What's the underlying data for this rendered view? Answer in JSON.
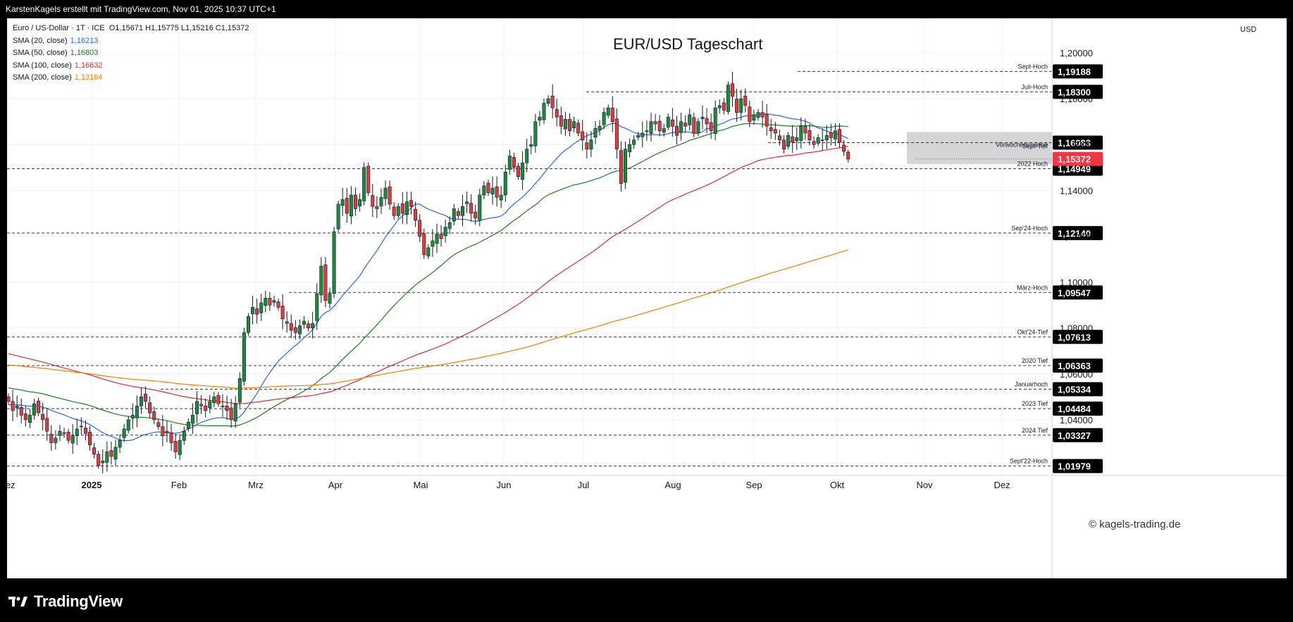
{
  "header": {
    "text": "KarstenKagels erstellt mit TradingView.com, Nov 01, 2025 10:37 UTC+1"
  },
  "legend": {
    "symbol": "Euro / US-Dollar · 1T · ICE",
    "ohlc": "O1,15671  H1,15775  L1,15216  C1,15372",
    "sma": [
      {
        "label": "SMA (20, close)",
        "value": "1,16213",
        "color": "#2962ff"
      },
      {
        "label": "SMA (50, close)",
        "value": "1,16803",
        "color": "#1b7d1b"
      },
      {
        "label": "SMA (100, close)",
        "value": "1,16632",
        "color": "#d32f2f"
      },
      {
        "label": "SMA (200, close)",
        "value": "1,13164",
        "color": "#f57c00"
      }
    ]
  },
  "title": "EUR/USD Tageschart",
  "currency": "USD",
  "watermark": "© kagels-trading.de",
  "footer": {
    "brand": "TradingView"
  },
  "chart_data": {
    "type": "candlestick",
    "title": "EUR/USD Tageschart",
    "y_axis_ticks": [
      "1,20000",
      "1,18000",
      "1,16000",
      "1,14000",
      "1,12000",
      "1,10000",
      "1,08000",
      "1,06000",
      "1,04000"
    ],
    "y_axis_tick_values": [
      1.2,
      1.18,
      1.16,
      1.14,
      1.12,
      1.1,
      1.08,
      1.06,
      1.04
    ],
    "x_axis_ticks": [
      "Dez",
      "2025",
      "Feb",
      "Mrz",
      "Apr",
      "Mai",
      "Jun",
      "Jul",
      "Aug",
      "Sep",
      "Okt",
      "Nov",
      "Dez"
    ],
    "levels": [
      {
        "name": "Sept-Hoch",
        "value": 1.19188,
        "label": "1,19188"
      },
      {
        "name": "Juli-Hoch",
        "value": 1.183,
        "label": "1,18300"
      },
      {
        "name": "Vorwochenspanne",
        "value": 1.16083,
        "label": "1,16083"
      },
      {
        "name": "Sept-Tief",
        "value": 1.16083,
        "label": ""
      },
      {
        "name": "2022 Hoch",
        "value": 1.14949,
        "label": "1,14949"
      },
      {
        "name": "Sep'24-Hoch",
        "value": 1.1214,
        "label": "1,12140"
      },
      {
        "name": "März-Hoch",
        "value": 1.09547,
        "label": "1,09547"
      },
      {
        "name": "Okt'24-Tief",
        "value": 1.07613,
        "label": "1,07613"
      },
      {
        "name": "2020 Tief",
        "value": 1.06363,
        "label": "1,06363"
      },
      {
        "name": "Januarhoch",
        "value": 1.05334,
        "label": "1,05334"
      },
      {
        "name": "2023 Tief",
        "value": 1.04484,
        "label": "1,04484"
      },
      {
        "name": "2024 Tief",
        "value": 1.03327,
        "label": "1,03327"
      },
      {
        "name": "Sept'22-Hoch",
        "value": 1.01979,
        "label": "1,01979"
      }
    ],
    "current_price": {
      "value": 1.15372,
      "label": "1,15372"
    },
    "range_box": {
      "low": 1.1515,
      "high": 1.1655
    },
    "ohlc_last": {
      "open": 1.15671,
      "high": 1.15775,
      "low": 1.15216,
      "close": 1.15372
    },
    "sma": [
      {
        "name": "SMA (20, close)",
        "last": 1.16213
      },
      {
        "name": "SMA (50, close)",
        "last": 1.16803
      },
      {
        "name": "SMA (100, close)",
        "last": 1.16632
      },
      {
        "name": "SMA (200, close)",
        "last": 1.13164
      }
    ],
    "closes_approx": [
      1.048,
      1.044,
      1.046,
      1.042,
      1.04,
      1.042,
      1.047,
      1.043,
      1.04,
      1.035,
      1.03,
      1.032,
      1.035,
      1.034,
      1.031,
      1.033,
      1.036,
      1.037,
      1.034,
      1.029,
      1.025,
      1.02,
      1.022,
      1.026,
      1.024,
      1.028,
      1.031,
      1.036,
      1.04,
      1.042,
      1.046,
      1.05,
      1.048,
      1.043,
      1.04,
      1.037,
      1.033,
      1.035,
      1.03,
      1.026,
      1.031,
      1.035,
      1.039,
      1.042,
      1.048,
      1.046,
      1.044,
      1.048,
      1.05,
      1.047,
      1.046,
      1.044,
      1.04,
      1.047,
      1.058,
      1.078,
      1.085,
      1.089,
      1.086,
      1.091,
      1.093,
      1.09,
      1.092,
      1.089,
      1.084,
      1.082,
      1.079,
      1.078,
      1.081,
      1.083,
      1.08,
      1.082,
      1.095,
      1.107,
      1.092,
      1.095,
      1.122,
      1.134,
      1.136,
      1.13,
      1.138,
      1.132,
      1.136,
      1.15,
      1.139,
      1.133,
      1.132,
      1.137,
      1.141,
      1.134,
      1.129,
      1.133,
      1.13,
      1.135,
      1.133,
      1.127,
      1.12,
      1.112,
      1.115,
      1.118,
      1.121,
      1.119,
      1.124,
      1.126,
      1.132,
      1.129,
      1.133,
      1.135,
      1.13,
      1.128,
      1.138,
      1.142,
      1.139,
      1.141,
      1.137,
      1.138,
      1.148,
      1.155,
      1.15,
      1.146,
      1.152,
      1.158,
      1.16,
      1.17,
      1.172,
      1.178,
      1.18,
      1.176,
      1.172,
      1.168,
      1.171,
      1.166,
      1.17,
      1.165,
      1.162,
      1.158,
      1.162,
      1.167,
      1.168,
      1.174,
      1.176,
      1.17,
      1.158,
      1.143,
      1.158,
      1.16,
      1.162,
      1.164,
      1.165,
      1.166,
      1.17,
      1.169,
      1.166,
      1.167,
      1.172,
      1.168,
      1.164,
      1.17,
      1.168,
      1.173,
      1.165,
      1.17,
      1.172,
      1.169,
      1.166,
      1.176,
      1.177,
      1.175,
      1.186,
      1.181,
      1.174,
      1.18,
      1.177,
      1.17,
      1.173,
      1.174,
      1.172,
      1.168,
      1.166,
      1.165,
      1.162,
      1.158,
      1.164,
      1.161,
      1.163,
      1.168,
      1.165,
      1.162,
      1.16,
      1.163,
      1.162,
      1.164,
      1.163,
      1.166,
      1.161,
      1.157,
      1.154
    ]
  }
}
